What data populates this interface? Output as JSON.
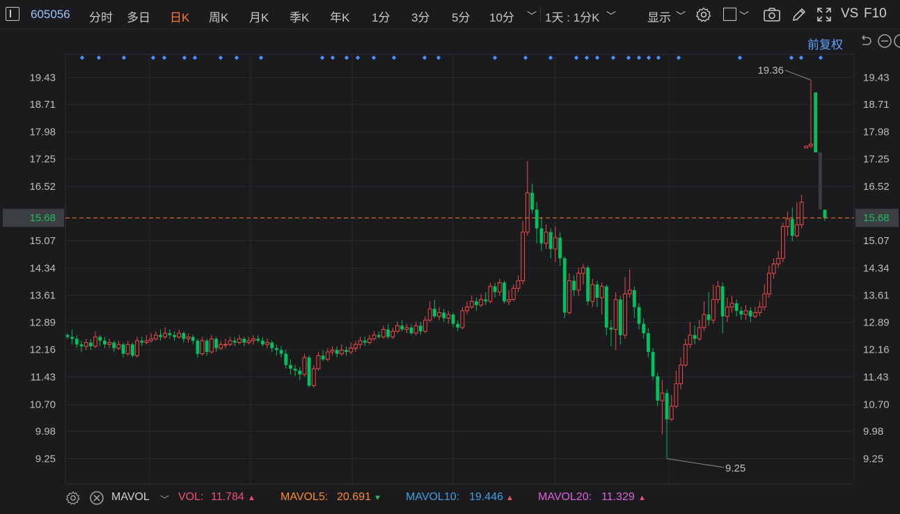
{
  "toolbar": {
    "stock_code": "605056",
    "period_tabs": [
      {
        "label": "分时",
        "active": false
      },
      {
        "label": "多日",
        "active": false
      },
      {
        "label": "日K",
        "active": true
      },
      {
        "label": "周K",
        "active": false
      },
      {
        "label": "月K",
        "active": false
      },
      {
        "label": "季K",
        "active": false
      },
      {
        "label": "年K",
        "active": false
      },
      {
        "label": "1分",
        "active": false
      },
      {
        "label": "3分",
        "active": false
      },
      {
        "label": "5分",
        "active": false
      },
      {
        "label": "10分",
        "active": false
      }
    ],
    "multi_period": "1天 : 1分K",
    "display_label": "显示",
    "vs_label": "VS",
    "f10_label": "F10"
  },
  "adjust_label": "前复权",
  "colors": {
    "up": "#f04b4b",
    "down": "#00c060",
    "accent": "#ff7a2f",
    "marker": "#4a90ff",
    "last": "#1fbf5a"
  },
  "chart_data": {
    "type": "candlestick",
    "y_ticks": [
      "19.43",
      "18.71",
      "17.98",
      "17.25",
      "16.52",
      "15.68",
      "15.07",
      "14.34",
      "13.61",
      "12.89",
      "12.16",
      "11.43",
      "10.70",
      "9.98",
      "9.25"
    ],
    "ylim": [
      8.57,
      20.05
    ],
    "last_price": "15.68",
    "annotations": {
      "max": "19.36",
      "min": "9.25"
    },
    "candles": [
      [
        12.55,
        12.5,
        12.6,
        12.45
      ],
      [
        12.5,
        12.45,
        12.7,
        12.3
      ],
      [
        12.45,
        12.3,
        12.55,
        12.2
      ],
      [
        12.3,
        12.25,
        12.4,
        12.1
      ],
      [
        12.25,
        12.35,
        12.45,
        12.15
      ],
      [
        12.35,
        12.25,
        12.45,
        12.15
      ],
      [
        12.25,
        12.5,
        12.65,
        12.2
      ],
      [
        12.5,
        12.4,
        12.55,
        12.25
      ],
      [
        12.4,
        12.3,
        12.5,
        12.2
      ],
      [
        12.3,
        12.35,
        12.45,
        12.2
      ],
      [
        12.35,
        12.2,
        12.4,
        12.1
      ],
      [
        12.2,
        12.3,
        12.4,
        12.15
      ],
      [
        12.3,
        12.05,
        12.35,
        11.95
      ],
      [
        12.05,
        12.3,
        12.4,
        12.0
      ],
      [
        12.3,
        12.0,
        12.35,
        11.95
      ],
      [
        12.0,
        12.4,
        12.5,
        11.95
      ],
      [
        12.4,
        12.35,
        12.5,
        12.25
      ],
      [
        12.35,
        12.4,
        12.55,
        12.3
      ],
      [
        12.4,
        12.45,
        12.6,
        12.35
      ],
      [
        12.45,
        12.55,
        12.65,
        12.4
      ],
      [
        12.55,
        12.5,
        12.7,
        12.4
      ],
      [
        12.5,
        12.6,
        12.75,
        12.45
      ],
      [
        12.6,
        12.55,
        12.7,
        12.45
      ],
      [
        12.55,
        12.5,
        12.65,
        12.4
      ],
      [
        12.5,
        12.6,
        12.7,
        12.45
      ],
      [
        12.6,
        12.45,
        12.65,
        12.35
      ],
      [
        12.45,
        12.5,
        12.6,
        12.35
      ],
      [
        12.5,
        12.4,
        12.55,
        12.3
      ],
      [
        12.4,
        12.05,
        12.45,
        11.95
      ],
      [
        12.05,
        12.4,
        12.5,
        12.0
      ],
      [
        12.4,
        12.1,
        12.45,
        12.0
      ],
      [
        12.1,
        12.45,
        12.55,
        12.05
      ],
      [
        12.45,
        12.2,
        12.5,
        12.1
      ],
      [
        12.2,
        12.3,
        12.4,
        12.15
      ],
      [
        12.3,
        12.3,
        12.45,
        12.2
      ],
      [
        12.3,
        12.4,
        12.5,
        12.25
      ],
      [
        12.4,
        12.35,
        12.5,
        12.25
      ],
      [
        12.35,
        12.45,
        12.55,
        12.3
      ],
      [
        12.45,
        12.35,
        12.5,
        12.25
      ],
      [
        12.35,
        12.4,
        12.5,
        12.3
      ],
      [
        12.4,
        12.45,
        12.55,
        12.3
      ],
      [
        12.45,
        12.4,
        12.55,
        12.35
      ],
      [
        12.4,
        12.3,
        12.5,
        12.25
      ],
      [
        12.3,
        12.35,
        12.45,
        12.2
      ],
      [
        12.35,
        12.2,
        12.4,
        12.1
      ],
      [
        12.2,
        12.15,
        12.3,
        12.0
      ],
      [
        12.15,
        12.05,
        12.25,
        11.95
      ],
      [
        12.05,
        11.75,
        12.15,
        11.65
      ],
      [
        11.75,
        11.65,
        11.9,
        11.5
      ],
      [
        11.65,
        11.6,
        11.75,
        11.45
      ],
      [
        11.6,
        11.5,
        11.7,
        11.35
      ],
      [
        11.5,
        11.95,
        12.05,
        11.45
      ],
      [
        11.95,
        11.2,
        12.0,
        11.15
      ],
      [
        11.2,
        11.65,
        11.75,
        11.15
      ],
      [
        11.65,
        12.0,
        12.1,
        11.6
      ],
      [
        12.0,
        11.9,
        12.15,
        11.85
      ],
      [
        11.9,
        12.1,
        12.2,
        11.85
      ],
      [
        12.1,
        12.15,
        12.25,
        12.0
      ],
      [
        12.15,
        12.05,
        12.25,
        11.95
      ],
      [
        12.05,
        12.15,
        12.3,
        12.0
      ],
      [
        12.15,
        12.1,
        12.25,
        12.0
      ],
      [
        12.1,
        12.2,
        12.35,
        12.05
      ],
      [
        12.2,
        12.3,
        12.4,
        12.1
      ],
      [
        12.3,
        12.4,
        12.5,
        12.2
      ],
      [
        12.4,
        12.35,
        12.5,
        12.25
      ],
      [
        12.35,
        12.45,
        12.55,
        12.3
      ],
      [
        12.45,
        12.55,
        12.65,
        12.4
      ],
      [
        12.55,
        12.5,
        12.65,
        12.45
      ],
      [
        12.5,
        12.7,
        12.8,
        12.45
      ],
      [
        12.7,
        12.5,
        12.85,
        12.45
      ],
      [
        12.5,
        12.65,
        12.75,
        12.45
      ],
      [
        12.65,
        12.8,
        12.9,
        12.6
      ],
      [
        12.8,
        12.7,
        12.95,
        12.65
      ],
      [
        12.7,
        12.75,
        12.85,
        12.6
      ],
      [
        12.75,
        12.6,
        12.85,
        12.55
      ],
      [
        12.6,
        12.8,
        12.9,
        12.55
      ],
      [
        12.8,
        12.65,
        12.9,
        12.55
      ],
      [
        12.65,
        12.95,
        13.05,
        12.6
      ],
      [
        12.95,
        13.25,
        13.45,
        12.9
      ],
      [
        13.25,
        13.05,
        13.5,
        13.0
      ],
      [
        13.05,
        13.15,
        13.3,
        12.95
      ],
      [
        13.15,
        13.0,
        13.25,
        12.9
      ],
      [
        13.0,
        13.1,
        13.2,
        12.85
      ],
      [
        13.1,
        12.85,
        13.15,
        12.75
      ],
      [
        12.85,
        12.75,
        12.95,
        12.65
      ],
      [
        12.75,
        13.2,
        13.3,
        12.7
      ],
      [
        13.2,
        13.3,
        13.45,
        13.1
      ],
      [
        13.3,
        13.45,
        13.6,
        13.25
      ],
      [
        13.45,
        13.35,
        13.55,
        13.2
      ],
      [
        13.35,
        13.5,
        13.65,
        13.3
      ],
      [
        13.5,
        13.45,
        13.7,
        13.35
      ],
      [
        13.45,
        13.85,
        13.95,
        13.4
      ],
      [
        13.85,
        13.7,
        13.95,
        13.55
      ],
      [
        13.7,
        13.95,
        14.05,
        13.6
      ],
      [
        13.95,
        13.45,
        14.0,
        13.4
      ],
      [
        13.45,
        13.5,
        13.75,
        13.35
      ],
      [
        13.5,
        13.8,
        13.9,
        13.45
      ],
      [
        13.8,
        14.0,
        14.15,
        13.7
      ],
      [
        14.0,
        15.3,
        15.6,
        13.9
      ],
      [
        15.3,
        16.35,
        17.2,
        15.2
      ],
      [
        16.35,
        15.9,
        16.6,
        15.8
      ],
      [
        15.9,
        15.4,
        16.1,
        15.0
      ],
      [
        15.4,
        15.0,
        15.7,
        14.8
      ],
      [
        15.0,
        15.3,
        15.5,
        14.85
      ],
      [
        15.3,
        14.85,
        15.4,
        14.6
      ],
      [
        14.85,
        15.15,
        15.45,
        14.5
      ],
      [
        15.15,
        14.6,
        15.3,
        14.4
      ],
      [
        14.6,
        13.15,
        14.65,
        13.0
      ],
      [
        13.15,
        14.0,
        14.2,
        13.1
      ],
      [
        14.0,
        13.75,
        14.15,
        13.6
      ],
      [
        13.75,
        14.2,
        14.35,
        13.6
      ],
      [
        14.2,
        14.35,
        14.45,
        13.9
      ],
      [
        14.35,
        13.45,
        14.4,
        13.35
      ],
      [
        13.45,
        13.9,
        14.05,
        13.3
      ],
      [
        13.9,
        13.55,
        14.0,
        13.3
      ],
      [
        13.55,
        13.85,
        13.95,
        13.1
      ],
      [
        13.85,
        12.75,
        13.9,
        12.55
      ],
      [
        12.75,
        12.7,
        12.95,
        12.25
      ],
      [
        12.7,
        13.5,
        13.7,
        12.15
      ],
      [
        13.5,
        12.55,
        13.6,
        12.3
      ],
      [
        12.55,
        13.65,
        14.1,
        12.45
      ],
      [
        13.65,
        13.75,
        14.3,
        13.55
      ],
      [
        13.75,
        13.3,
        13.85,
        13.0
      ],
      [
        13.3,
        12.85,
        13.4,
        12.7
      ],
      [
        12.85,
        12.6,
        13.0,
        12.45
      ],
      [
        12.6,
        12.1,
        12.75,
        11.95
      ],
      [
        12.1,
        11.45,
        12.2,
        11.35
      ],
      [
        11.45,
        10.8,
        11.55,
        10.65
      ],
      [
        10.8,
        11.0,
        11.35,
        9.9
      ],
      [
        11.0,
        10.3,
        11.1,
        9.25
      ],
      [
        10.3,
        10.65,
        10.95,
        10.25
      ],
      [
        10.65,
        11.25,
        11.6,
        10.6
      ],
      [
        11.25,
        11.75,
        11.95,
        11.1
      ],
      [
        11.75,
        12.3,
        12.45,
        11.7
      ],
      [
        12.3,
        12.55,
        12.9,
        12.2
      ],
      [
        12.55,
        12.45,
        12.8,
        12.3
      ],
      [
        12.45,
        12.75,
        12.95,
        12.4
      ],
      [
        12.75,
        13.1,
        13.45,
        12.65
      ],
      [
        13.1,
        12.95,
        13.7,
        12.8
      ],
      [
        12.95,
        13.5,
        13.9,
        12.85
      ],
      [
        13.5,
        13.85,
        14.0,
        13.4
      ],
      [
        13.85,
        13.05,
        13.95,
        12.6
      ],
      [
        13.05,
        13.3,
        13.55,
        12.9
      ],
      [
        13.3,
        13.4,
        13.6,
        13.15
      ],
      [
        13.4,
        13.2,
        13.5,
        13.05
      ],
      [
        13.2,
        13.1,
        13.3,
        12.95
      ],
      [
        13.1,
        13.2,
        13.35,
        12.95
      ],
      [
        13.2,
        13.05,
        13.3,
        12.9
      ],
      [
        13.05,
        13.15,
        13.3,
        13.0
      ],
      [
        13.15,
        13.3,
        13.45,
        13.05
      ],
      [
        13.3,
        13.65,
        13.9,
        13.2
      ],
      [
        13.65,
        14.2,
        14.4,
        13.55
      ],
      [
        14.2,
        14.45,
        14.6,
        14.05
      ],
      [
        14.45,
        14.6,
        14.8,
        14.35
      ],
      [
        14.6,
        15.45,
        15.55,
        14.5
      ],
      [
        15.45,
        15.65,
        15.85,
        15.2
      ],
      [
        15.65,
        15.2,
        15.95,
        15.05
      ],
      [
        15.2,
        15.5,
        16.1,
        15.15
      ],
      [
        15.5,
        16.1,
        16.3,
        15.4
      ],
      [
        17.55,
        17.6,
        17.6,
        17.55
      ],
      [
        17.6,
        17.65,
        19.36,
        17.55
      ],
      [
        19.03,
        17.43,
        19.03,
        17.43
      ],
      [
        17.43,
        15.9,
        17.43,
        15.9
      ],
      [
        15.9,
        15.68,
        15.9,
        15.6
      ]
    ]
  },
  "markers_x": [
    118,
    142,
    178,
    220,
    236,
    265,
    280,
    317,
    340,
    375,
    463,
    478,
    498,
    514,
    537,
    566,
    610,
    630,
    711,
    755,
    791,
    828,
    843,
    858,
    881,
    903,
    918,
    932,
    946,
    975,
    1063,
    1137,
    1151,
    1179
  ],
  "volume": {
    "indicator": "MAVOL",
    "vol_label": "VOL:",
    "vol_value": "11.784",
    "mavol5_label": "MAVOL5:",
    "mavol5_value": "20.691",
    "mavol10_label": "MAVOL10:",
    "mavol10_value": "19.446",
    "mavol20_label": "MAVOL20:",
    "mavol20_value": "11.329",
    "vol_color": "#f0506e",
    "mavol5_color": "#ff8a2a",
    "mavol10_color": "#3aa0e8",
    "mavol20_color": "#e060e0"
  }
}
